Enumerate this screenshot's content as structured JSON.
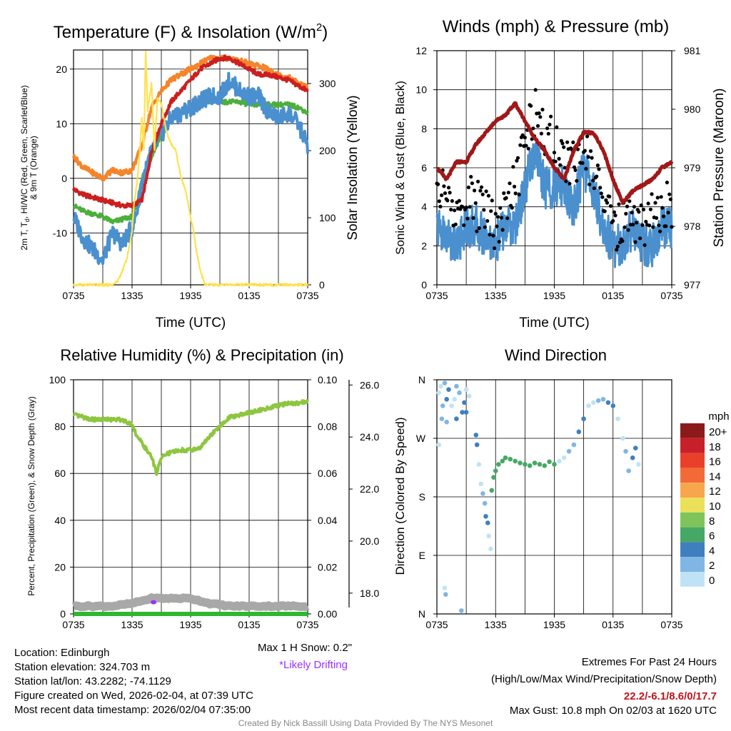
{
  "colors": {
    "temp_red": "#cc1f1f",
    "dew_green": "#4caf3c",
    "wc_blue": "#4a90cf",
    "t9_orange": "#f5842a",
    "insolation_yellow": "#ffe14d",
    "wind_blue": "#4a90cf",
    "gust_black": "#000000",
    "pressure_maroon": "#a01818",
    "rh_green": "#8dc63f",
    "precip_green": "#2eb82e",
    "snow_gray": "#a8a8a8",
    "drift_purple": "#9b30ff"
  },
  "time_ticks": [
    "0735",
    "1335",
    "1935",
    "0135",
    "0735"
  ],
  "chart_data": [
    {
      "id": "temp",
      "type": "line",
      "title": "Temperature (F) & Insolation (W/m",
      "title_sup": "2",
      "title_close": ")",
      "xlabel": "Time (UTC)",
      "ylabel_lines": [
        "2m T, T",
        "d",
        ", HI/WC (Red, Green, Scarlet/Blue)",
        "& 9m T (Orange)"
      ],
      "ylabel_right": "Solar Insolation (Yellow)",
      "ylim": [
        -19.5,
        23.5
      ],
      "y_ticks": [
        20,
        10,
        0,
        -10
      ],
      "y2lim": [
        0,
        350
      ],
      "y2_ticks": [
        300,
        200,
        100,
        0
      ],
      "x_ticks": [
        "0735",
        "1335",
        "1935",
        "0135",
        "0735"
      ],
      "series": [
        {
          "name": "2m T (Red)",
          "x": [
            0,
            1,
            2,
            3,
            4,
            5,
            6,
            7,
            7.5,
            8,
            9,
            10,
            11,
            12,
            13,
            14,
            15,
            16,
            17,
            18,
            19,
            20,
            21,
            22,
            23,
            24
          ],
          "values": [
            -2,
            -3,
            -3.5,
            -4,
            -4.5,
            -5,
            -5,
            -4,
            0,
            5,
            10,
            14,
            16,
            18,
            20,
            21,
            22,
            22,
            21,
            20,
            19,
            19,
            18.5,
            18,
            17,
            16
          ]
        },
        {
          "name": "Dew Point (Green)",
          "x": [
            0,
            1,
            2,
            3,
            4,
            5,
            6,
            6.5,
            7,
            8,
            9,
            10,
            11,
            12,
            13,
            14,
            15,
            16,
            17,
            18,
            19,
            20,
            21,
            22,
            23,
            24
          ],
          "values": [
            -5,
            -6,
            -6.5,
            -7,
            -8,
            -7.5,
            -7,
            -5,
            0,
            4,
            8,
            11,
            12,
            13,
            13.5,
            14,
            14,
            14,
            14,
            13.5,
            13.5,
            13.5,
            13.5,
            13.5,
            13,
            12
          ]
        },
        {
          "name": "Wind Chill (Blue)",
          "x": [
            0,
            1,
            2,
            3,
            4,
            5,
            6,
            6.5,
            7,
            8,
            9,
            10,
            11,
            12,
            13,
            14,
            15,
            16,
            17,
            18,
            19,
            20,
            21,
            22,
            23,
            24
          ],
          "values": [
            -7,
            -11,
            -13,
            -15,
            -10,
            -12,
            -9,
            -6,
            -1,
            5,
            8,
            11,
            12,
            13,
            14,
            15,
            15,
            18,
            16,
            15,
            15,
            12,
            11,
            12,
            10,
            6
          ]
        },
        {
          "name": "9m T (Orange)",
          "x": [
            0,
            1,
            2,
            3,
            4,
            5,
            6,
            7,
            8,
            9,
            10,
            11,
            12,
            13,
            14,
            15,
            16,
            17,
            18,
            19,
            20,
            21,
            22,
            23,
            24
          ],
          "values": [
            4,
            2,
            1,
            0,
            1.5,
            1,
            1.5,
            6,
            13,
            16,
            18,
            19,
            20,
            21,
            22,
            22,
            22,
            21.5,
            21,
            20.5,
            20,
            19,
            18.5,
            17.5,
            16.5
          ]
        }
      ],
      "insolation": {
        "name": "Solar Insolation (Yellow)",
        "axis": "right",
        "x": [
          0,
          1,
          2,
          3,
          4,
          4.5,
          5,
          5.5,
          6,
          6.2,
          6.5,
          6.8,
          7,
          7.2,
          7.4,
          7.6,
          8,
          8.3,
          8.6,
          9,
          9.5,
          10,
          10.5,
          11,
          11.5,
          12,
          12.3,
          12.6,
          13,
          13.5,
          14,
          24
        ],
        "values": [
          0,
          0,
          0,
          0,
          0,
          5,
          20,
          40,
          80,
          120,
          150,
          200,
          250,
          200,
          350,
          260,
          300,
          200,
          280,
          270,
          230,
          210,
          200,
          160,
          140,
          100,
          80,
          50,
          20,
          0,
          0,
          0
        ]
      }
    },
    {
      "id": "wind",
      "type": "line",
      "title": "Winds (mph) & Pressure (mb)",
      "xlabel": "Time (UTC)",
      "ylabel": "Sonic Wind & Gust (Blue, Black)",
      "ylabel_right": "Station Pressure (Maroon)",
      "ylim": [
        0,
        12
      ],
      "y_ticks": [
        "12",
        "10",
        "8",
        "6",
        "4",
        "2",
        "0"
      ],
      "y2lim": [
        977,
        981
      ],
      "y2_ticks": [
        "981",
        "980",
        "979",
        "978",
        "977"
      ],
      "x_ticks": [
        "0735",
        "1335",
        "1935",
        "0135",
        "0735"
      ],
      "series": [
        {
          "name": "Sonic Wind (Blue)",
          "x": [
            0,
            1,
            2,
            3,
            4,
            5,
            6,
            7,
            8,
            9,
            10,
            11,
            12,
            13,
            14,
            15,
            16,
            17,
            18,
            19,
            20,
            21,
            22,
            23,
            24
          ],
          "values": [
            3,
            2.5,
            2,
            3,
            3,
            2.5,
            2,
            3,
            3,
            5,
            7,
            5,
            5,
            5,
            4,
            6,
            5,
            3,
            2,
            2,
            3,
            2,
            2,
            3,
            3
          ]
        },
        {
          "name": "Gust (Black)",
          "x": [
            0,
            1,
            2,
            3,
            4,
            5,
            6,
            7,
            8,
            9,
            10,
            11,
            12,
            13,
            14,
            15,
            16,
            17,
            18,
            19,
            20,
            21,
            22,
            23,
            24
          ],
          "values": [
            5,
            4.5,
            3.5,
            4.5,
            4,
            4,
            3,
            4,
            5,
            7,
            9,
            8,
            7,
            6.5,
            6,
            7,
            6,
            4.5,
            3,
            3,
            3.5,
            3,
            3.5,
            4,
            4
          ]
        },
        {
          "name": "Station Pressure (Maroon)",
          "axis": "right",
          "x": [
            0,
            1,
            2,
            3,
            4,
            5,
            6,
            7,
            8,
            9,
            10,
            11,
            12,
            13,
            14,
            15,
            16,
            17,
            18,
            19,
            20,
            21,
            22,
            23,
            24
          ],
          "values": [
            979.0,
            978.8,
            979.1,
            979.1,
            979.4,
            979.6,
            979.8,
            979.9,
            980.1,
            979.8,
            979.5,
            979.3,
            979.0,
            978.8,
            979.3,
            979.6,
            979.6,
            979.3,
            978.8,
            978.4,
            978.6,
            978.7,
            978.8,
            979.0,
            979.1
          ]
        }
      ]
    },
    {
      "id": "rh",
      "type": "line",
      "title": "Relative Humidity (%) & Precipitation (in)",
      "ylabel": "Percent, Precipitation (Green), & Snow Depth (Gray)",
      "ylim": [
        0,
        100
      ],
      "y_ticks": [
        "100",
        "80",
        "60",
        "40",
        "20",
        "0"
      ],
      "y2lim": [
        0,
        0.1
      ],
      "y2_ticks": [
        "0.10",
        "0.08",
        "0.06",
        "0.04",
        "0.02",
        "0.00"
      ],
      "y3lim": [
        17.2,
        26.2
      ],
      "y3_ticks": [
        "26.0",
        "24.0",
        "22.0",
        "20.0",
        "18.0"
      ],
      "x_ticks": [
        "0735",
        "1335",
        "1935",
        "0135",
        "0735"
      ],
      "series": [
        {
          "name": "Relative Humidity (Green)",
          "x": [
            0,
            1,
            2,
            3,
            4,
            5,
            6,
            6.5,
            7,
            8,
            8.5,
            9,
            10,
            11,
            12,
            13,
            14,
            15,
            16,
            17,
            18,
            19,
            20,
            21,
            22,
            23,
            24
          ],
          "values": [
            85,
            84,
            83,
            83,
            83,
            83,
            81,
            76,
            73,
            67,
            60,
            67,
            69,
            70,
            70,
            71,
            76,
            80,
            84,
            85,
            86,
            87,
            88,
            89,
            90,
            90,
            91
          ]
        },
        {
          "name": "Precipitation (Green)",
          "x": [
            0,
            24
          ],
          "values": [
            0,
            0
          ]
        },
        {
          "name": "Snow Depth (Gray)",
          "x": [
            0,
            4,
            6,
            8,
            10,
            12,
            14,
            16,
            18,
            20,
            22,
            24
          ],
          "values": [
            17.5,
            17.5,
            17.6,
            17.8,
            17.8,
            17.8,
            17.6,
            17.5,
            17.5,
            17.5,
            17.5,
            17.5
          ]
        }
      ],
      "drift_flag": {
        "x": 8.2,
        "value": 0.005
      },
      "max_snow_label": "Max 1 H Snow: 0.2\"",
      "drift_label": "*Likely Drifting"
    },
    {
      "id": "dir",
      "type": "scatter",
      "title": "Wind Direction",
      "ylabel": "Direction (Colored By Speed)",
      "y_ticks": [
        "N",
        "W",
        "S",
        "E",
        "N"
      ],
      "x_ticks": [
        "0735",
        "1335",
        "1935",
        "0135",
        "0735"
      ],
      "legend": {
        "unit": "mph",
        "labels": [
          "20+",
          "18",
          "16",
          "14",
          "12",
          "10",
          "8",
          "6",
          "4",
          "2",
          "0"
        ],
        "colors": [
          "#8b1a1a",
          "#c8202a",
          "#e8402a",
          "#f26b36",
          "#f7a64b",
          "#ebe05a",
          "#7fc45b",
          "#46a865",
          "#3f7fc0",
          "#7fb6e4",
          "#bfe3f5"
        ]
      },
      "points": [
        [
          0.2,
          340
        ],
        [
          0.4,
          350
        ],
        [
          0.6,
          320
        ],
        [
          0.8,
          355
        ],
        [
          1,
          330
        ],
        [
          1.2,
          345
        ],
        [
          1.5,
          320
        ],
        [
          1.8,
          330
        ],
        [
          2,
          350
        ],
        [
          2.3,
          340
        ],
        [
          2.6,
          310
        ],
        [
          2.8,
          325
        ],
        [
          3,
          345
        ],
        [
          3.3,
          335
        ],
        [
          0.5,
          300
        ],
        [
          1,
          295
        ],
        [
          2,
          300
        ],
        [
          3,
          310
        ],
        [
          0.2,
          260
        ],
        [
          0.8,
          40
        ],
        [
          0.9,
          30
        ],
        [
          2.5,
          5
        ],
        [
          4,
          275
        ],
        [
          4.1,
          260
        ],
        [
          4.3,
          230
        ],
        [
          4.5,
          200
        ],
        [
          4.7,
          185
        ],
        [
          4.9,
          170
        ],
        [
          5,
          150
        ],
        [
          5.2,
          140
        ],
        [
          5.3,
          120
        ],
        [
          5.5,
          100
        ],
        [
          5.6,
          190
        ],
        [
          5.8,
          210
        ],
        [
          6,
          220
        ],
        [
          6.3,
          230
        ],
        [
          6.7,
          235
        ],
        [
          7,
          240
        ],
        [
          7.5,
          238
        ],
        [
          8,
          235
        ],
        [
          8.5,
          232
        ],
        [
          9,
          230
        ],
        [
          9.5,
          228
        ],
        [
          10,
          232
        ],
        [
          10.5,
          230
        ],
        [
          11,
          228
        ],
        [
          11.5,
          234
        ],
        [
          12,
          230
        ],
        [
          12.5,
          235
        ],
        [
          13,
          240
        ],
        [
          13.5,
          250
        ],
        [
          14,
          260
        ],
        [
          14.5,
          280
        ],
        [
          15,
          300
        ],
        [
          15.5,
          320
        ],
        [
          16,
          325
        ],
        [
          16.5,
          328
        ],
        [
          17,
          330
        ],
        [
          17.5,
          325
        ],
        [
          18,
          320
        ],
        [
          18.5,
          300
        ],
        [
          19,
          270
        ],
        [
          19.3,
          250
        ],
        [
          19.6,
          220
        ],
        [
          20,
          240
        ],
        [
          20.3,
          255
        ],
        [
          20.6,
          230
        ]
      ]
    }
  ],
  "station": {
    "location": "Location: Edinburgh",
    "elevation": "Station elevation: 324.703 m",
    "latlon": "Station lat/lon: 43.2282; -74.1129",
    "created": "Figure created on Wed, 2026-02-04, at 07:39 UTC",
    "recent": "Most recent data timestamp: 2026/02/04 07:35:00"
  },
  "extremes": {
    "title": "Extremes For Past 24 Hours",
    "subtitle": "(High/Low/Max Wind/Precipitation/Snow Depth)",
    "values": "22.2/-6.1/8.6/0/17.7",
    "max_gust": "Max Gust: 10.8 mph On 02/03 at 1620 UTC"
  },
  "credit": "Created By Nick Bassill Using Data Provided By The NYS Mesonet"
}
